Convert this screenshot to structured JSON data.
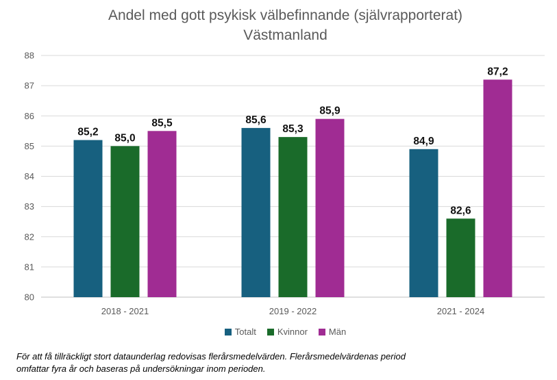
{
  "chart_data": {
    "type": "bar",
    "title": "Andel med gott psykisk välbefinnande (självrapporterat)",
    "subtitle": "Västmanland",
    "categories": [
      "2018 - 2021",
      "2019 - 2022",
      "2021 - 2024"
    ],
    "series": [
      {
        "name": "Totalt",
        "color": "#17607F",
        "values": [
          85.2,
          85.6,
          84.9
        ],
        "labels": [
          "85,2",
          "85,6",
          "84,9"
        ]
      },
      {
        "name": "Kvinnor",
        "color": "#1A6B2A",
        "values": [
          85.0,
          85.3,
          82.6
        ],
        "labels": [
          "85,0",
          "85,3",
          "82,6"
        ]
      },
      {
        "name": "Män",
        "color": "#A02C93",
        "values": [
          85.5,
          85.9,
          87.2
        ],
        "labels": [
          "85,5",
          "85,9",
          "87,2"
        ]
      }
    ],
    "yticks": [
      "80",
      "81",
      "82",
      "83",
      "84",
      "85",
      "86",
      "87",
      "88"
    ],
    "ylim": [
      80,
      88
    ],
    "grid": true,
    "legend_position": "bottom"
  },
  "footnote": {
    "line1": "För att få tillräckligt stort dataunderlag redovisas flerårsmedelvärden. Flerårsmedelvärdenas period",
    "line2": "omfattar fyra år och baseras på undersökningar inom perioden."
  }
}
